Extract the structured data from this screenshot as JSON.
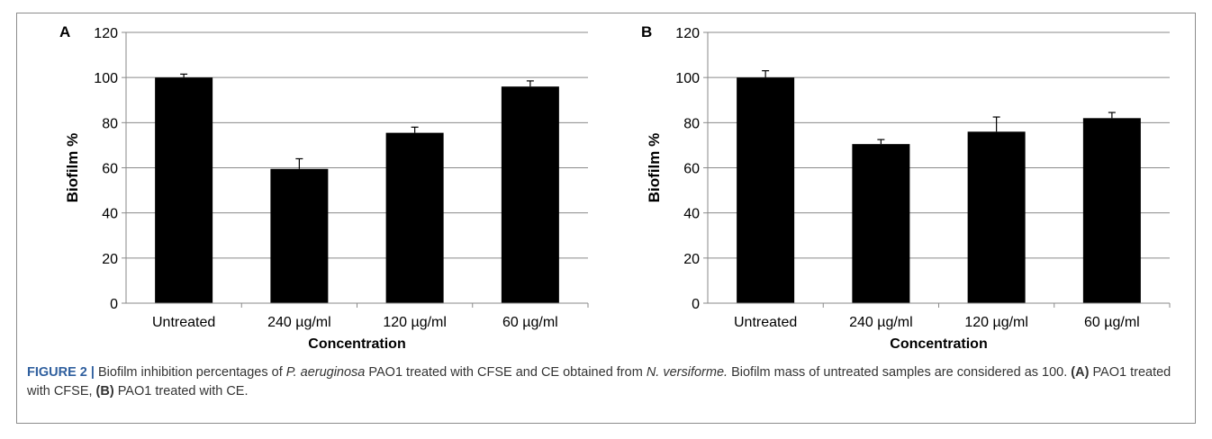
{
  "chart_data": [
    {
      "panel_label": "A",
      "type": "bar",
      "categories": [
        "Untreated",
        "240 µg/ml",
        "120 µg/ml",
        "60 µg/ml"
      ],
      "values": [
        100,
        59.5,
        75.5,
        96
      ],
      "errors": [
        1.5,
        4.5,
        2.5,
        2.5
      ],
      "xlabel": "Concentration",
      "ylabel": "Biofilm %",
      "ylim": [
        0,
        120
      ],
      "yticks": [
        0,
        20,
        40,
        60,
        80,
        100,
        120
      ],
      "grid": true,
      "bar_color": "#000000"
    },
    {
      "panel_label": "B",
      "type": "bar",
      "categories": [
        "Untreated",
        "240 µg/ml",
        "120 µg/ml",
        "60 µg/ml"
      ],
      "values": [
        100,
        70.5,
        76,
        82
      ],
      "errors": [
        3,
        2,
        6.5,
        2.5
      ],
      "xlabel": "Concentration",
      "ylabel": "Biofilm %",
      "ylim": [
        0,
        120
      ],
      "yticks": [
        0,
        20,
        40,
        60,
        80,
        100,
        120
      ],
      "grid": true,
      "bar_color": "#000000"
    }
  ],
  "caption": {
    "label": "FIGURE 2 |",
    "t1": " Biofilm inhibition percentages of ",
    "i1": "P. aeruginosa",
    "t2": " PAO1 treated with CFSE and CE obtained from ",
    "i2": "N. versiforme.",
    "t3": " Biofilm mass of untreated samples are considered as 100. ",
    "a_ref": "(A)",
    "t4": " PAO1 treated with CFSE, ",
    "b_ref": "(B)",
    "t5": " PAO1 treated with CE."
  }
}
